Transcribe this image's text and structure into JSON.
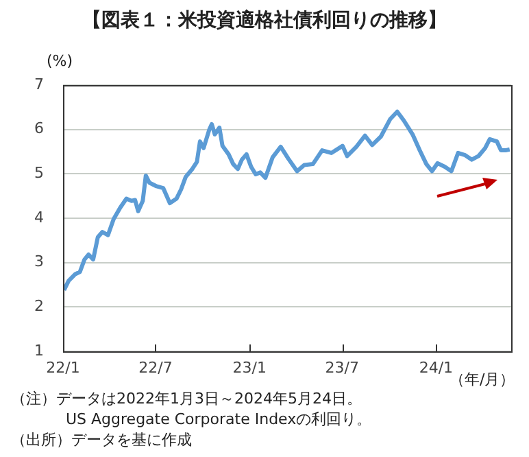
{
  "chart_data": {
    "type": "line",
    "title": "【図表１：米投資適格社債利回りの推移】",
    "ylabel": "(%)",
    "xlabel": "（年/月）",
    "color": "#5b9bd5",
    "grid": "y",
    "xlim": [
      "2022-01-01",
      "2024-05-27"
    ],
    "xticks": [
      {
        "value": "2022-01-01",
        "label": "22/1"
      },
      {
        "value": "2022-07-01",
        "label": "22/7"
      },
      {
        "value": "2023-01-01",
        "label": "23/1"
      },
      {
        "value": "2023-07-01",
        "label": "23/7"
      },
      {
        "value": "2024-01-01",
        "label": "24/1"
      }
    ],
    "ylim": [
      1,
      7
    ],
    "yticks": [
      1,
      2,
      3,
      4,
      5,
      6,
      7
    ],
    "x": [
      "2022-01-03",
      "2022-01-12",
      "2022-01-25",
      "2022-02-03",
      "2022-02-12",
      "2022-02-20",
      "2022-03-01",
      "2022-03-10",
      "2022-03-19",
      "2022-03-30",
      "2022-04-10",
      "2022-04-23",
      "2022-05-05",
      "2022-05-15",
      "2022-05-22",
      "2022-05-28",
      "2022-06-06",
      "2022-06-12",
      "2022-06-19",
      "2022-07-03",
      "2022-07-16",
      "2022-07-29",
      "2022-08-11",
      "2022-08-20",
      "2022-08-29",
      "2022-09-11",
      "2022-09-20",
      "2022-09-26",
      "2022-10-03",
      "2022-10-14",
      "2022-10-19",
      "2022-10-25",
      "2022-11-03",
      "2022-11-09",
      "2022-11-21",
      "2022-11-30",
      "2022-12-09",
      "2022-12-17",
      "2022-12-26",
      "2023-01-04",
      "2023-01-13",
      "2023-01-22",
      "2023-02-01",
      "2023-02-15",
      "2023-03-03",
      "2023-03-18",
      "2023-04-04",
      "2023-04-18",
      "2023-05-05",
      "2023-05-23",
      "2023-06-10",
      "2023-07-02",
      "2023-07-11",
      "2023-07-29",
      "2023-08-15",
      "2023-08-29",
      "2023-09-15",
      "2023-10-03",
      "2023-10-17",
      "2023-10-30",
      "2023-11-16",
      "2023-11-30",
      "2023-12-13",
      "2023-12-24",
      "2024-01-04",
      "2024-01-18",
      "2024-01-31",
      "2024-02-13",
      "2024-02-27",
      "2024-03-11",
      "2024-03-24",
      "2024-04-06",
      "2024-04-15",
      "2024-04-29",
      "2024-05-07",
      "2024-05-16",
      "2024-05-24"
    ],
    "values": [
      2.38,
      2.59,
      2.74,
      2.79,
      3.07,
      3.18,
      3.07,
      3.57,
      3.69,
      3.62,
      3.98,
      4.24,
      4.44,
      4.39,
      4.41,
      4.16,
      4.39,
      4.96,
      4.8,
      4.72,
      4.68,
      4.34,
      4.44,
      4.65,
      4.93,
      5.11,
      5.27,
      5.73,
      5.58,
      5.99,
      6.12,
      5.89,
      6.04,
      5.63,
      5.44,
      5.22,
      5.11,
      5.32,
      5.44,
      5.16,
      4.99,
      5.03,
      4.91,
      5.37,
      5.61,
      5.34,
      5.06,
      5.2,
      5.22,
      5.53,
      5.47,
      5.63,
      5.4,
      5.61,
      5.86,
      5.65,
      5.84,
      6.23,
      6.4,
      6.2,
      5.89,
      5.53,
      5.22,
      5.06,
      5.24,
      5.16,
      5.06,
      5.47,
      5.42,
      5.32,
      5.4,
      5.58,
      5.78,
      5.73,
      5.53,
      5.53,
      5.55
    ],
    "annotations": [
      "（注）データは2022年1月3日～2024年5月24日。",
      "US Aggregate Corporate Indexの利回り。",
      "（出所）データを基に作成"
    ]
  }
}
